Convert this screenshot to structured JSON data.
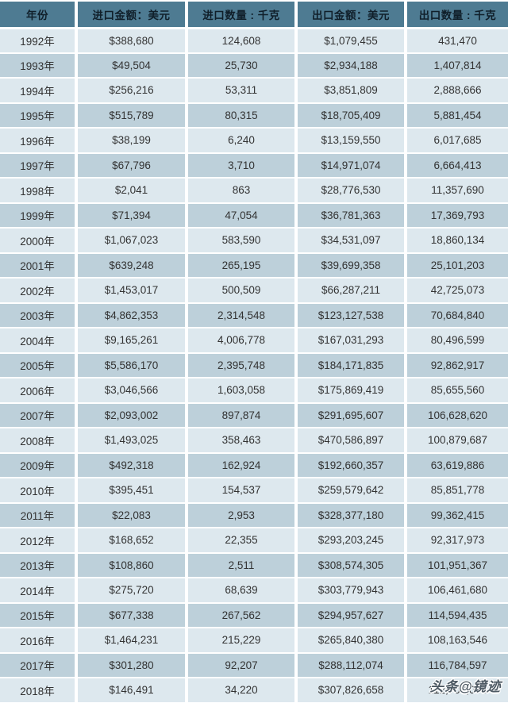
{
  "colors": {
    "header_bg": "#4e7b92",
    "header_text": "#101f2a",
    "row_light": "#dde8ee",
    "row_dark": "#bdd0da",
    "body_text": "#333333",
    "divider": "#ffffff",
    "watermark_text": "#4e5a64"
  },
  "table": {
    "columns": [
      "年份",
      "进口金额：美元",
      "进口数量 : 千克",
      "出口金额：美元",
      "出口数量 : 千克"
    ],
    "rows": [
      [
        "1992年",
        "$388,680",
        "124,608",
        "$1,079,455",
        "431,470"
      ],
      [
        "1993年",
        "$49,504",
        "25,730",
        "$2,934,188",
        "1,407,814"
      ],
      [
        "1994年",
        "$256,216",
        "53,311",
        "$3,851,809",
        "2,888,666"
      ],
      [
        "1995年",
        "$515,789",
        "80,315",
        "$18,705,409",
        "5,881,454"
      ],
      [
        "1996年",
        "$38,199",
        "6,240",
        "$13,159,550",
        "6,017,685"
      ],
      [
        "1997年",
        "$67,796",
        "3,710",
        "$14,971,074",
        "6,664,413"
      ],
      [
        "1998年",
        "$2,041",
        "863",
        "$28,776,530",
        "11,357,690"
      ],
      [
        "1999年",
        "$71,394",
        "47,054",
        "$36,781,363",
        "17,369,793"
      ],
      [
        "2000年",
        "$1,067,023",
        "583,590",
        "$34,531,097",
        "18,860,134"
      ],
      [
        "2001年",
        "$639,248",
        "265,195",
        "$39,699,358",
        "25,101,203"
      ],
      [
        "2002年",
        "$1,453,017",
        "500,509",
        "$66,287,211",
        "42,725,073"
      ],
      [
        "2003年",
        "$4,862,353",
        "2,314,548",
        "$123,127,538",
        "70,684,840"
      ],
      [
        "2004年",
        "$9,165,261",
        "4,006,778",
        "$167,031,293",
        "80,496,599"
      ],
      [
        "2005年",
        "$5,586,170",
        "2,395,748",
        "$184,171,835",
        "92,862,917"
      ],
      [
        "2006年",
        "$3,046,566",
        "1,603,058",
        "$175,869,419",
        "85,655,560"
      ],
      [
        "2007年",
        "$2,093,002",
        "897,874",
        "$291,695,607",
        "106,628,620"
      ],
      [
        "2008年",
        "$1,493,025",
        "358,463",
        "$470,586,897",
        "100,879,687"
      ],
      [
        "2009年",
        "$492,318",
        "162,924",
        "$192,660,357",
        "63,619,886"
      ],
      [
        "2010年",
        "$395,451",
        "154,537",
        "$259,579,642",
        "85,851,778"
      ],
      [
        "2011年",
        "$22,083",
        "2,953",
        "$328,377,180",
        "99,362,415"
      ],
      [
        "2012年",
        "$168,652",
        "22,355",
        "$293,203,245",
        "92,317,973"
      ],
      [
        "2013年",
        "$108,860",
        "2,511",
        "$308,574,305",
        "101,951,367"
      ],
      [
        "2014年",
        "$275,720",
        "68,639",
        "$303,779,943",
        "106,461,680"
      ],
      [
        "2015年",
        "$677,338",
        "267,562",
        "$294,957,627",
        "114,594,435"
      ],
      [
        "2016年",
        "$1,464,231",
        "215,229",
        "$265,840,380",
        "108,163,546"
      ],
      [
        "2017年",
        "$301,280",
        "92,207",
        "$288,112,074",
        "116,784,597"
      ],
      [
        "2018年",
        "$146,491",
        "34,220",
        "$307,826,658",
        "112,706,058"
      ]
    ]
  },
  "watermark": {
    "text": "头条@镜迹"
  }
}
